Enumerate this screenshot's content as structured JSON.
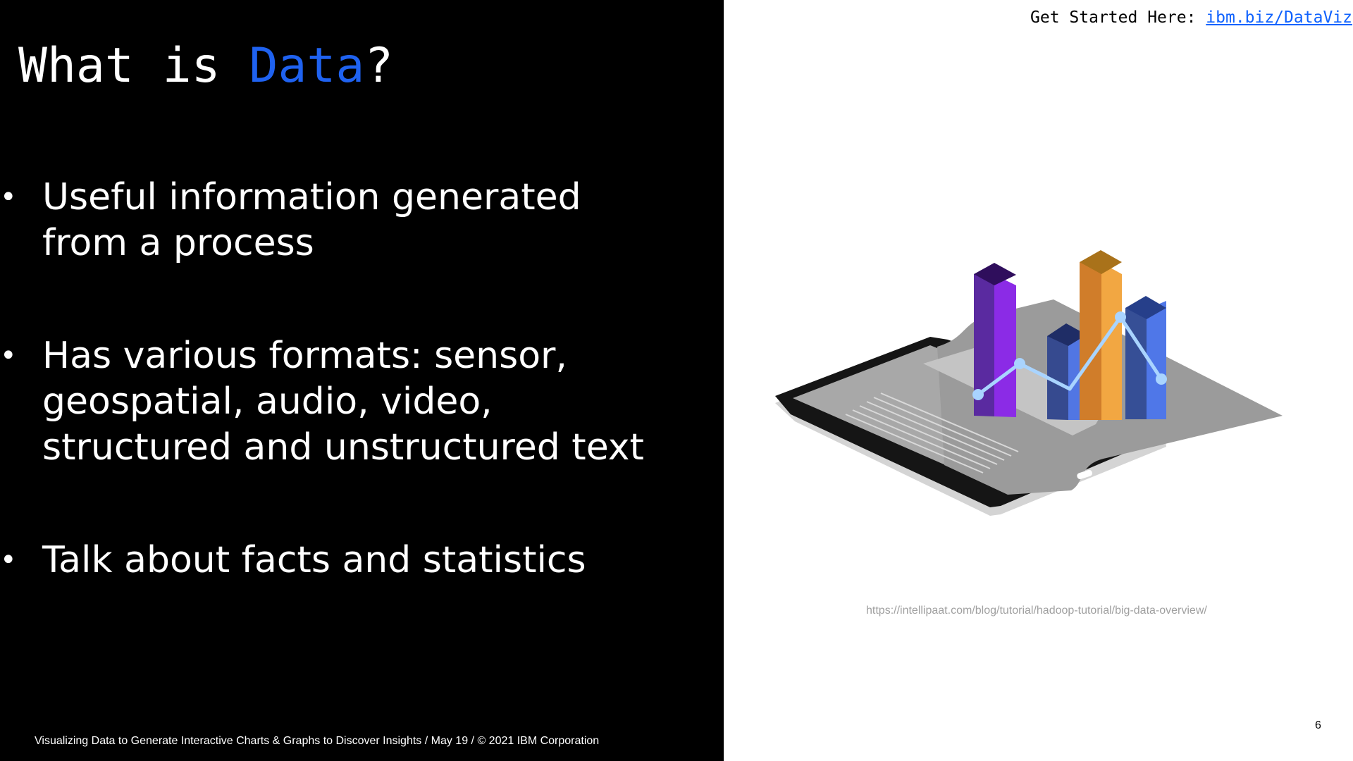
{
  "slide": {
    "title_prefix": "What is ",
    "title_accent": "Data",
    "title_suffix": "?",
    "bullets": [
      "Useful information generated from a process",
      "Has various formats: sensor, geospatial, audio, video, structured and unstructured text",
      "Talk about facts and statistics"
    ],
    "bullet_glyph": "•",
    "footer": "Visualizing Data to Generate Interactive Charts & Graphs to Discover Insights / May 19 / © 2021 IBM Corporation",
    "get_started_label": "Get Started Here: ",
    "get_started_link": "ibm.biz/DataViz",
    "image_source": "https://intellipaat.com/blog/tutorial/hadoop-tutorial/big-data-overview/",
    "page_number": "6"
  },
  "illustration": {
    "icon": "tablet-bar-chart-icon"
  },
  "colors": {
    "background_left": "#000000",
    "background_right": "#ffffff",
    "title_accent": "#1f62f0",
    "link": "#0f62fe",
    "source_text": "#a0a0a0"
  }
}
